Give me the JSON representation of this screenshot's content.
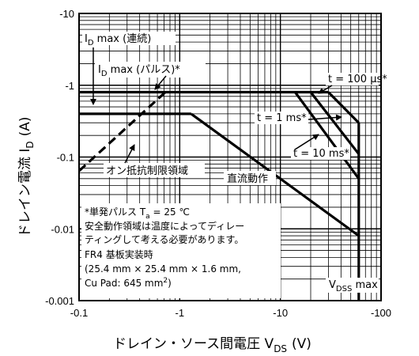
{
  "chart_data": {
    "type": "line",
    "title": "",
    "x_scale": "log",
    "y_scale": "log",
    "xlim": [
      -0.1,
      -100
    ],
    "ylim": [
      -0.001,
      -10
    ],
    "x_ticks": [
      "-0.1",
      "-1",
      "-10",
      "-100"
    ],
    "y_ticks": [
      "-10",
      "-1",
      "-0.1",
      "-0.01",
      "-0.001"
    ],
    "xlabel": {
      "main": "ドレイン・ソース間電圧 V",
      "sub": "DS",
      "unit": "(V)"
    },
    "ylabel": {
      "main": "ドレイン電流 I",
      "sub": "D",
      "unit": "(A)"
    },
    "grid": true,
    "series": [
      {
        "id": "id_max_continuous",
        "x": [
          -0.1,
          -1.3
        ],
        "y": [
          -0.4,
          -0.4
        ]
      },
      {
        "id": "id_max_pulse",
        "x": [
          -0.1,
          -30
        ],
        "y": [
          -0.8,
          -0.8
        ]
      },
      {
        "id": "dc_line",
        "x": [
          -1.3,
          -60
        ],
        "y": [
          -0.4,
          -0.008
        ]
      },
      {
        "id": "t_100us",
        "x": [
          -30,
          -60
        ],
        "y": [
          -0.8,
          -0.3
        ]
      },
      {
        "id": "t_1ms",
        "x": [
          -20,
          -60
        ],
        "y": [
          -0.8,
          -0.11
        ]
      },
      {
        "id": "t_10ms",
        "x": [
          -14,
          -60
        ],
        "y": [
          -0.8,
          -0.05
        ]
      },
      {
        "id": "vdss_max",
        "x": [
          -60,
          -60
        ],
        "y": [
          -0.3,
          -0.001
        ]
      },
      {
        "id": "on_resistance_limit",
        "style": "dashed",
        "x": [
          -0.1,
          -0.72
        ],
        "y": [
          -0.064,
          -0.8
        ]
      }
    ],
    "annotations": [
      {
        "id": "lbl_id_cont",
        "main": "I",
        "sub": "D",
        "rest": " max (連続)"
      },
      {
        "id": "lbl_id_pulse",
        "main": "I",
        "sub": "D",
        "rest": " max (パルス)*"
      },
      {
        "id": "lbl_100us",
        "text": "t = 100 μs*"
      },
      {
        "id": "lbl_1ms",
        "text": "t = 1 ms*"
      },
      {
        "id": "lbl_10ms",
        "text": "t = 10 ms*"
      },
      {
        "id": "lbl_ron",
        "text": "オン抵抗制限領域"
      },
      {
        "id": "lbl_dc",
        "text": "直流動作"
      },
      {
        "id": "lbl_vdss",
        "main": "V",
        "sub": "DSS",
        "rest": " max"
      }
    ],
    "notes": {
      "line1_main": "*単発パルス T",
      "line1_sub": "a",
      "line1_rest": " = 25 ℃",
      "line2": "安全動作領域は温度によってディレー",
      "line3": "ティングして考える必要があります。",
      "line4": "FR4 基板実装時",
      "line5": " (25.4 mm × 25.4 mm × 1.6 mm,",
      "line6_main": " Cu Pad: 645 mm",
      "line6_sup": "2",
      "line6_rest": ")"
    }
  }
}
